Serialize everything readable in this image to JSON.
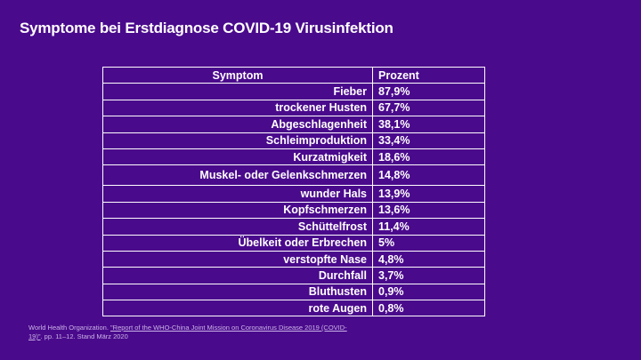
{
  "title": "Symptome bei Erstdiagnose COVID-19 Virusinfektion",
  "table": {
    "headers": {
      "symptom": "Symptom",
      "percent": "Prozent"
    },
    "rows": [
      {
        "symptom": "Fieber",
        "percent": "87,9%"
      },
      {
        "symptom": "trockener Husten",
        "percent": "67,7%"
      },
      {
        "symptom": "Abgeschlagenheit",
        "percent": "38,1%"
      },
      {
        "symptom": "Schleimproduktion",
        "percent": "33,4%"
      },
      {
        "symptom": "Kurzatmigkeit",
        "percent": "18,6%"
      },
      {
        "symptom": "Muskel- oder Gelenkschmerzen",
        "percent": "14,8%"
      },
      {
        "symptom": "wunder Hals",
        "percent": "13,9%"
      },
      {
        "symptom": "Kopfschmerzen",
        "percent": "13,6%"
      },
      {
        "symptom": "Schüttelfrost",
        "percent": "11,4%"
      },
      {
        "symptom": "Übelkeit oder Erbrechen",
        "percent": "5%"
      },
      {
        "symptom": "verstopfte Nase",
        "percent": "4,8%"
      },
      {
        "symptom": "Durchfall",
        "percent": "3,7%"
      },
      {
        "symptom": "Bluthusten",
        "percent": "0,9%"
      },
      {
        "symptom": "rote Augen",
        "percent": "0,8%"
      }
    ]
  },
  "citation": {
    "prefix": "World Health Organization. ",
    "link_text": "\"Report of the WHO-China Joint Mission on Coronavirus Disease 2019 (COVID-19)\"",
    "suffix": ". pp. 11–12. Stand März 2020"
  }
}
